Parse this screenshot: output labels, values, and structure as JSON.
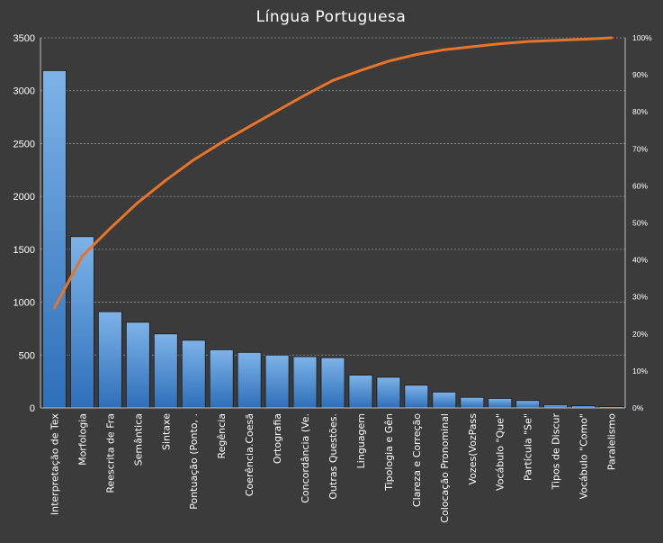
{
  "chart_data": {
    "type": "bar",
    "title": "Língua Portuguesa",
    "categories": [
      "Interpretação de Tex",
      "Morfologia",
      "Reescrita de Fra",
      "Semântica",
      "Sintaxe",
      "Pontuação (Ponto, .",
      "Regência",
      "Coerência.Coesã",
      "Ortografia",
      "Concordância (Ve.",
      "Outras Questões.",
      "Linguagem",
      "Tipologia e Gên",
      "Clareza e Correção",
      "Colocação Pronominal",
      "Vozes(VozPass",
      "Vocábulo \"Que\"",
      "Partícula \"Se\"",
      "Tipos de Discur",
      "Vocábulo \"Como\"",
      "Paralelismo"
    ],
    "values": [
      3190,
      1620,
      910,
      810,
      700,
      640,
      550,
      525,
      500,
      485,
      475,
      310,
      290,
      215,
      150,
      100,
      90,
      70,
      30,
      20,
      12
    ],
    "cumulative_pct": [
      27,
      41,
      48.5,
      55.5,
      61.5,
      67,
      71.7,
      76,
      80.3,
      84.5,
      88.5,
      91.2,
      93.7,
      95.5,
      96.8,
      97.6,
      98.4,
      99,
      99.3,
      99.6,
      100
    ],
    "y_left": {
      "min": 0,
      "max": 3500,
      "ticks": [
        0,
        500,
        1000,
        1500,
        2000,
        2500,
        3000,
        3500
      ]
    },
    "y_right": {
      "min": 0,
      "max": 100,
      "ticks": [
        "0%",
        "10%",
        "20%",
        "30%",
        "40%",
        "50%",
        "60%",
        "70%",
        "80%",
        "90%",
        "100%"
      ]
    },
    "colors": {
      "background": "#3b3b3b",
      "bar_top": "#7db3e8",
      "bar_bottom": "#2e6fba",
      "bar_stroke": "#1a1a1a",
      "line": "#e8742a",
      "grid": "#9a9a9a",
      "text": "#ffffff"
    },
    "grid": true,
    "legend": "none"
  }
}
